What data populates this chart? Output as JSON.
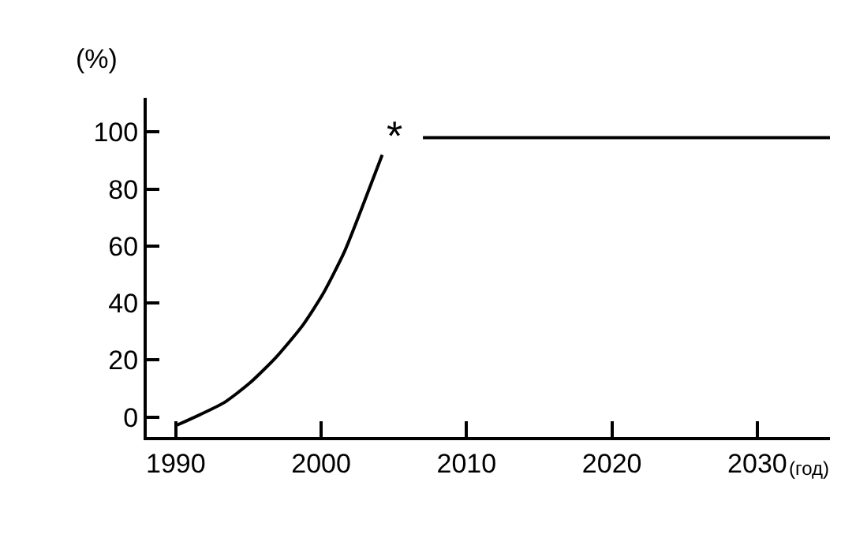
{
  "chart_data": {
    "type": "line",
    "ylabel": "(%)",
    "xlabel": "(год)",
    "xlim": [
      1988,
      2035
    ],
    "xticks": [
      1990,
      2000,
      2010,
      2020,
      2030
    ],
    "ylim": [
      -7,
      112
    ],
    "yticks": [
      0,
      20,
      40,
      60,
      80,
      100
    ],
    "series": [
      {
        "color": "#000000",
        "x": [
          1990,
          1993.3,
          1995.1,
          1996.9,
          1998.7,
          2000.1,
          2001.6,
          2003,
          2004.2
        ],
        "values": [
          -3,
          5,
          12,
          21,
          32,
          43,
          58,
          76,
          92
        ]
      },
      {
        "color": "#000000",
        "x": [
          2007,
          2035
        ],
        "values": [
          98,
          98
        ]
      }
    ],
    "annotations": [
      "*"
    ],
    "grid": false,
    "marker": "none",
    "line_style": "solid"
  }
}
